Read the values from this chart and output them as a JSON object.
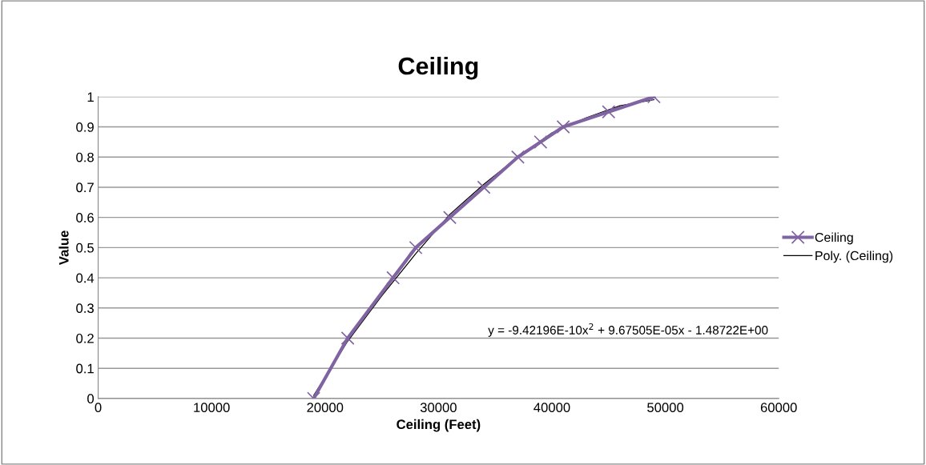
{
  "chart_data": {
    "type": "line",
    "title": "Ceiling",
    "xlabel": "Ceiling (Feet)",
    "ylabel": "Value",
    "xlim": [
      0,
      60000
    ],
    "xticks": [
      0,
      10000,
      20000,
      30000,
      40000,
      50000,
      60000
    ],
    "ylim": [
      0,
      1
    ],
    "yticks": [
      0,
      0.1,
      0.2,
      0.3,
      0.4,
      0.5,
      0.6,
      0.7,
      0.8,
      0.9,
      1
    ],
    "grid": "y",
    "legend": "right",
    "series": [
      {
        "name": "Ceiling",
        "color": "#8064a2",
        "marker": "cross",
        "x": [
          19000,
          22000,
          26000,
          28000,
          31000,
          34000,
          37000,
          39000,
          41000,
          45000,
          49000
        ],
        "values": [
          0,
          0.2,
          0.4,
          0.5,
          0.6,
          0.7,
          0.8,
          0.85,
          0.9,
          0.95,
          1
        ]
      },
      {
        "name": "Poly. (Ceiling)",
        "color": "#000000",
        "marker": "none",
        "x": [
          19000,
          22000,
          25000,
          28000,
          31000,
          34000,
          37000,
          40000,
          43000,
          46000,
          49000
        ],
        "values": [
          0.01,
          0.19,
          0.34,
          0.48,
          0.61,
          0.71,
          0.8,
          0.88,
          0.93,
          0.97,
          0.99
        ]
      }
    ],
    "annotations": [
      "y = -9.42196E-10x$^{2}$ + 9.67505E-05x - 1.48722E+00"
    ]
  }
}
